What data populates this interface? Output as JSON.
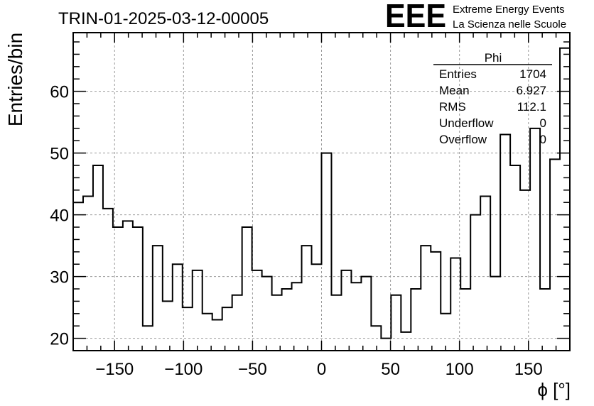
{
  "chart_data": {
    "type": "histogram",
    "title": "TRIN-01-2025-03-12-00005",
    "xlabel": "ϕ [°]",
    "ylabel": "Entries/bin",
    "xlim": [
      -180,
      180
    ],
    "ylim": [
      18,
      69.5
    ],
    "grid": true,
    "bin_width": 7.2,
    "x_ticks": [
      -150,
      -100,
      -50,
      0,
      50,
      100,
      150
    ],
    "x_tick_labels": [
      "−150",
      "−100",
      "−50",
      "0",
      "50",
      "100",
      "150"
    ],
    "y_ticks": [
      20,
      30,
      40,
      50,
      60
    ],
    "y_tick_labels": [
      "20",
      "30",
      "40",
      "50",
      "60"
    ],
    "bin_low_edges": [
      -180,
      -172.8,
      -165.6,
      -158.4,
      -151.2,
      -144,
      -136.8,
      -129.6,
      -122.4,
      -115.2,
      -108,
      -100.8,
      -93.6,
      -86.4,
      -79.2,
      -72,
      -64.8,
      -57.6,
      -50.4,
      -43.2,
      -36,
      -28.8,
      -21.6,
      -14.4,
      -7.2,
      0,
      7.2,
      14.4,
      21.6,
      28.8,
      36,
      43.2,
      50.4,
      57.6,
      64.8,
      72,
      79.2,
      86.4,
      93.6,
      100.8,
      108,
      115.2,
      122.4,
      129.6,
      136.8,
      144,
      151.2,
      158.4,
      165.6,
      172.8
    ],
    "values": [
      42,
      43,
      48,
      41,
      38,
      39,
      38,
      22,
      35,
      26,
      32,
      25,
      31,
      24,
      23,
      25,
      27,
      38,
      31,
      30,
      27,
      28,
      29,
      35,
      32,
      50,
      27,
      31,
      29,
      30,
      22,
      20,
      27,
      21,
      28,
      35,
      34,
      24,
      33,
      28,
      40,
      43,
      30,
      53,
      48,
      44,
      54,
      28,
      49,
      67
    ]
  },
  "stats_box": {
    "title": "Phi",
    "rows": [
      {
        "label": "Entries",
        "value": "1704"
      },
      {
        "label": "Mean",
        "value": "6.927"
      },
      {
        "label": "RMS",
        "value": "112.1"
      },
      {
        "label": "Underflow",
        "value": "0"
      },
      {
        "label": "Overflow",
        "value": "0"
      }
    ]
  },
  "logo": {
    "mark": "EEE",
    "line1": "Extreme Energy Events",
    "line2": "La Scienza nelle Scuole",
    "color": "#1a1aff"
  }
}
